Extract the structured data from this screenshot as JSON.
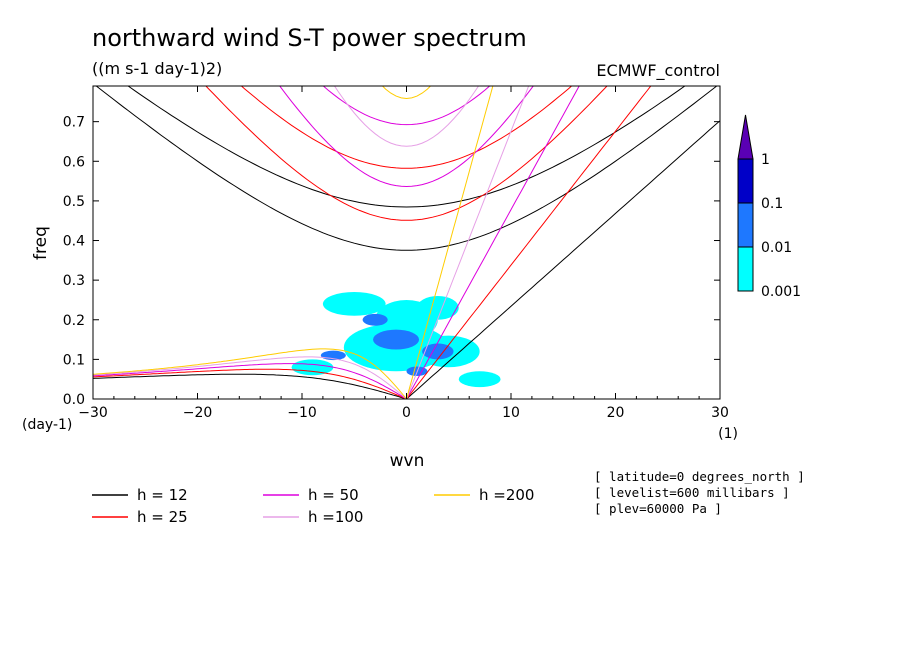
{
  "chart_data": {
    "type": "heatmap",
    "title": "northward wind S-T power spectrum",
    "subtitle": "((m s-1 day-1)2)",
    "source_label": "ECMWF_control",
    "xlabel": "wvn",
    "ylabel": "freq",
    "x_unit_label": "(1)",
    "y_unit_label": "(day-1)",
    "xlim": [
      -30,
      30
    ],
    "ylim": [
      0,
      0.79
    ],
    "xticks": [
      -30,
      -20,
      -10,
      0,
      10,
      20,
      30
    ],
    "yticks": [
      0.0,
      0.1,
      0.2,
      0.3,
      0.4,
      0.5,
      0.6,
      0.7
    ],
    "colorbar": {
      "levels": [
        "0.001",
        "0.01",
        "0.1",
        "1"
      ],
      "colors": [
        "#00ffff",
        "#1e78ff",
        "#0000c8",
        "#5a00b4"
      ]
    },
    "dispersion_curves": [
      {
        "name": "h = 12",
        "h": 12,
        "color": "#000000"
      },
      {
        "name": "h = 25",
        "h": 25,
        "color": "#ff0000"
      },
      {
        "name": "h = 50",
        "h": 50,
        "color": "#dd00dd"
      },
      {
        "name": "h =100",
        "h": 100,
        "color": "#e6a0e6"
      },
      {
        "name": "h =200",
        "h": 200,
        "color": "#ffcc00"
      }
    ],
    "annotations": [
      "[ latitude=0 degrees_north ]",
      "[ levelist=600 millibars ]",
      "[ plev=60000 Pa ]"
    ],
    "spectrum_blobs": [
      {
        "x": -1,
        "y": 0.13,
        "rx": 5,
        "ry": 0.06,
        "level": 1
      },
      {
        "x": 0,
        "y": 0.2,
        "rx": 3,
        "ry": 0.05,
        "level": 1
      },
      {
        "x": 4,
        "y": 0.12,
        "rx": 3,
        "ry": 0.04,
        "level": 1
      },
      {
        "x": -5,
        "y": 0.24,
        "rx": 3,
        "ry": 0.03,
        "level": 1
      },
      {
        "x": 3,
        "y": 0.23,
        "rx": 2,
        "ry": 0.03,
        "level": 1
      },
      {
        "x": -9,
        "y": 0.08,
        "rx": 2,
        "ry": 0.02,
        "level": 1
      },
      {
        "x": 7,
        "y": 0.05,
        "rx": 2,
        "ry": 0.02,
        "level": 1
      },
      {
        "x": -1,
        "y": 0.15,
        "rx": 2.2,
        "ry": 0.025,
        "level": 2
      },
      {
        "x": 3,
        "y": 0.12,
        "rx": 1.5,
        "ry": 0.02,
        "level": 2
      },
      {
        "x": -3,
        "y": 0.2,
        "rx": 1.2,
        "ry": 0.015,
        "level": 2
      },
      {
        "x": -7,
        "y": 0.11,
        "rx": 1.2,
        "ry": 0.012,
        "level": 2
      },
      {
        "x": 1,
        "y": 0.07,
        "rx": 1.0,
        "ry": 0.012,
        "level": 2
      }
    ]
  }
}
